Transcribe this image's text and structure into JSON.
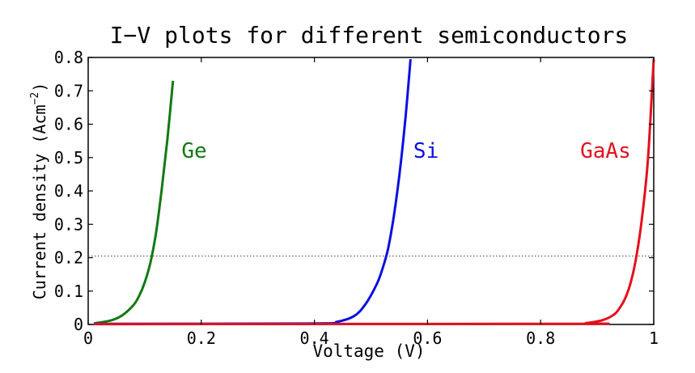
{
  "chart_data": {
    "type": "line",
    "title": "I−V plots for different semiconductors",
    "xlabel": "Voltage (V)",
    "ylabel_base": "Current density (Acm",
    "ylabel_sup": "−2",
    "ylabel_end": ")",
    "xlim": [
      0,
      1
    ],
    "ylim": [
      0,
      0.8
    ],
    "x_ticks": [
      0,
      0.2,
      0.4,
      0.6,
      0.8,
      1
    ],
    "x_tick_labels": [
      "0",
      "0.2",
      "0.4",
      "0.6",
      "0.8",
      "1"
    ],
    "y_ticks": [
      0,
      0.1,
      0.2,
      0.3,
      0.4,
      0.5,
      0.6,
      0.7,
      0.8
    ],
    "y_tick_labels": [
      "0",
      "0.1",
      "0.2",
      "0.3",
      "0.4",
      "0.5",
      "0.6",
      "0.7",
      "0.8"
    ],
    "grid": false,
    "reference_line": {
      "y": 0.205,
      "style": "dotted",
      "color": "#555555"
    },
    "series": [
      {
        "name": "Ge",
        "color": "#117a11",
        "x": [
          0.01,
          0.04,
          0.06,
          0.08,
          0.09,
          0.1,
          0.11,
          0.12,
          0.13,
          0.14,
          0.15
        ],
        "y": [
          0.003,
          0.012,
          0.027,
          0.058,
          0.085,
          0.126,
          0.185,
          0.275,
          0.405,
          0.555,
          0.73
        ]
      },
      {
        "name": "Si",
        "color": "#0a10e0",
        "x": [
          0.01,
          0.4,
          0.44,
          0.47,
          0.49,
          0.51,
          0.52,
          0.53,
          0.54,
          0.55,
          0.56,
          0.57
        ],
        "y": [
          0.002,
          0.003,
          0.008,
          0.025,
          0.06,
          0.12,
          0.165,
          0.225,
          0.32,
          0.445,
          0.6,
          0.795
        ]
      },
      {
        "name": "GaAs",
        "color": "#e4101c",
        "x": [
          0.01,
          0.85,
          0.88,
          0.91,
          0.93,
          0.94,
          0.95,
          0.96,
          0.97,
          0.98,
          0.99,
          1.0
        ],
        "y": [
          0.001,
          0.002,
          0.004,
          0.013,
          0.03,
          0.05,
          0.08,
          0.13,
          0.21,
          0.33,
          0.5,
          0.795
        ]
      }
    ],
    "annotations": [
      {
        "text": "Ge",
        "x": 0.165,
        "y": 0.5,
        "color": "#117a11"
      },
      {
        "text": "Si",
        "x": 0.575,
        "y": 0.5,
        "color": "#0a10e0"
      },
      {
        "text": "GaAs",
        "x": 0.87,
        "y": 0.5,
        "color": "#e4101c"
      }
    ]
  }
}
